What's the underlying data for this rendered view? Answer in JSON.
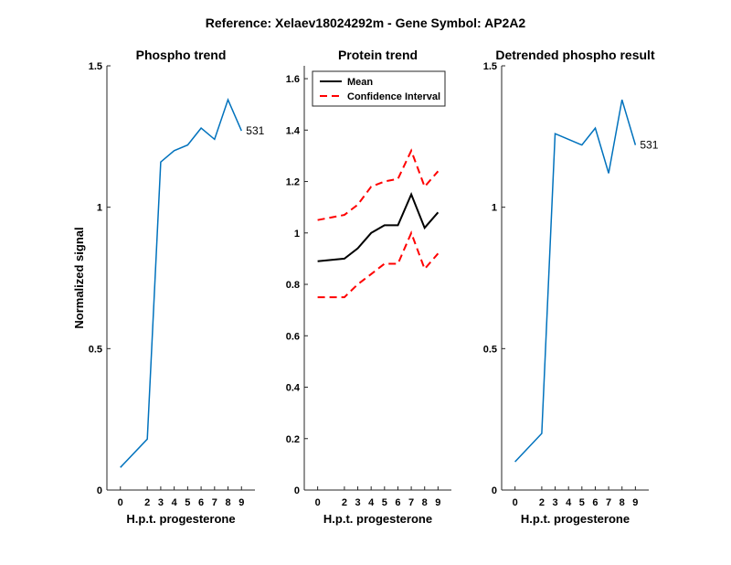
{
  "figure": {
    "suptitle": "Reference:  Xelaev18024292m - Gene Symbol:  AP2A2",
    "line_color": "#0072BD",
    "mean_color": "#000000",
    "ci_color": "#FF0000"
  },
  "chart_data": [
    {
      "type": "line",
      "title": "Phospho trend",
      "xlabel": "H.p.t. progesterone",
      "ylabel": "Normalized signal",
      "xticks": [
        0,
        2,
        3,
        4,
        5,
        6,
        7,
        8,
        9
      ],
      "yticks": [
        0,
        0.5,
        1,
        1.5
      ],
      "ytick_labels": [
        "0",
        "0.5",
        "1",
        "1.5"
      ],
      "ylim": [
        0,
        1.5
      ],
      "series": [
        {
          "values": [
            0.08,
            0.18,
            1.16,
            1.2,
            1.22,
            1.28,
            1.24,
            1.38,
            1.27
          ]
        }
      ],
      "annotation": "531"
    },
    {
      "type": "line",
      "title": "Protein trend",
      "xlabel": "H.p.t. progesterone",
      "ylabel": "",
      "xticks": [
        0,
        2,
        3,
        4,
        5,
        6,
        7,
        8,
        9
      ],
      "yticks": [
        0,
        0.2,
        0.4,
        0.6,
        0.8,
        1,
        1.2,
        1.4,
        1.6
      ],
      "ytick_labels": [
        "0",
        "0.2",
        "0.4",
        "0.6",
        "0.8",
        "1",
        "1.2",
        "1.4",
        "1.6"
      ],
      "ylim": [
        0,
        1.65
      ],
      "legend_position": "top-left",
      "series": [
        {
          "name": "Mean",
          "values": [
            0.89,
            0.9,
            0.94,
            1.0,
            1.03,
            1.03,
            1.15,
            1.02,
            1.08
          ]
        },
        {
          "name": "Confidence Interval",
          "values": [
            1.05,
            1.07,
            1.11,
            1.18,
            1.2,
            1.21,
            1.32,
            1.18,
            1.24
          ]
        },
        {
          "name": "",
          "values": [
            0.75,
            0.75,
            0.8,
            0.84,
            0.88,
            0.88,
            1.0,
            0.86,
            0.92
          ]
        }
      ]
    },
    {
      "type": "line",
      "title": "Detrended phospho result",
      "xlabel": "H.p.t. progesterone",
      "ylabel": "",
      "xticks": [
        0,
        2,
        3,
        4,
        5,
        6,
        7,
        8,
        9
      ],
      "yticks": [
        0,
        0.5,
        1,
        1.5
      ],
      "ytick_labels": [
        "0",
        "0.5",
        "1",
        "1.5"
      ],
      "ylim": [
        0,
        1.5
      ],
      "series": [
        {
          "values": [
            0.1,
            0.2,
            1.26,
            1.24,
            1.22,
            1.28,
            1.12,
            1.38,
            1.22
          ]
        }
      ],
      "annotation": "531"
    }
  ]
}
